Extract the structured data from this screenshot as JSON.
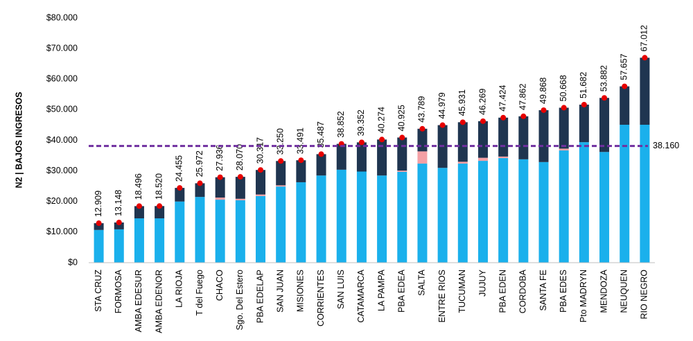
{
  "chart_data": {
    "type": "bar",
    "stacked": true,
    "y_label": "N2 | BAJOS INGRESOS",
    "categories": [
      "STA CRUZ",
      "FORMOSA",
      "AMBA EDESUR",
      "AMBA EDENOR",
      "LA RIOJA",
      "T del Fuego",
      "CHACO",
      "Sgo. Del Estero",
      "PBA EDELAP",
      "SAN JUAN",
      "MISIONES",
      "CORRIENTES",
      "SAN LUIS",
      "CATAMARCA",
      "LA PAMPA",
      "PBA EDEA",
      "SALTA",
      "ENTRE RIOS",
      "TUCUMAN",
      "JUJUY",
      "PBA EDEN",
      "CORDOBA",
      "SANTA FE",
      "PBA EDES",
      "Pto MADRYN",
      "MENDOZA",
      "NEUQUEN",
      "RIO NEGRO"
    ],
    "series": [
      {
        "color": "#1ab0ec",
        "values": [
          10700,
          10900,
          14500,
          14500,
          20000,
          21500,
          20600,
          20400,
          21800,
          24900,
          26300,
          28500,
          30400,
          29800,
          28500,
          29700,
          32400,
          31000,
          32400,
          33300,
          34200,
          33800,
          32900,
          36700,
          39400,
          36200,
          45100,
          45100
        ]
      },
      {
        "color": "#f4a0a5",
        "values": [
          0,
          0,
          0,
          0,
          0,
          0,
          700,
          500,
          500,
          400,
          0,
          0,
          0,
          0,
          0,
          400,
          4000,
          0,
          600,
          1000,
          500,
          0,
          0,
          600,
          0,
          0,
          0,
          0
        ]
      },
      {
        "color": "#1f3550",
        "values": [
          2209,
          2248,
          3996,
          4020,
          4455,
          4472,
          6636,
          7170,
          8017,
          7950,
          7191,
          6987,
          8452,
          9552,
          11774,
          10825,
          7389,
          13979,
          12931,
          11969,
          12724,
          14062,
          16968,
          13368,
          12282,
          17682,
          12557,
          21912
        ]
      }
    ],
    "totals": {
      "color": "#e60000",
      "values": [
        12909,
        13148,
        18496,
        18520,
        24455,
        25972,
        27936,
        28070,
        30317,
        33250,
        33491,
        35487,
        38852,
        39352,
        40274,
        40925,
        43789,
        44979,
        45931,
        46269,
        47424,
        47862,
        49868,
        50668,
        51682,
        53882,
        57657,
        67012
      ],
      "value_labels": [
        "12.909",
        "13.148",
        "18.496",
        "18.520",
        "24.455",
        "25.972",
        "27.936",
        "28.070",
        "30.317",
        "33.250",
        "33.491",
        "35.487",
        "38.852",
        "39.352",
        "40.274",
        "40.925",
        "43.789",
        "44.979",
        "45.931",
        "46.269",
        "47.424",
        "47.862",
        "49.868",
        "50.668",
        "51.682",
        "53.882",
        "57.657",
        "67.012"
      ]
    },
    "reference_line": {
      "value": 38160,
      "label": "38.160",
      "color": "#7030a0"
    },
    "ylim": [
      0,
      80000
    ],
    "yticks": [
      {
        "value": 0,
        "label": "$0"
      },
      {
        "value": 10000,
        "label": "$10.000"
      },
      {
        "value": 20000,
        "label": "$20.000"
      },
      {
        "value": 30000,
        "label": "$30.000"
      },
      {
        "value": 40000,
        "label": "$40.000"
      },
      {
        "value": 50000,
        "label": "$50.000"
      },
      {
        "value": 60000,
        "label": "$60.000"
      },
      {
        "value": 70000,
        "label": "$70.000"
      },
      {
        "value": 80000,
        "label": "$80.000"
      }
    ]
  }
}
